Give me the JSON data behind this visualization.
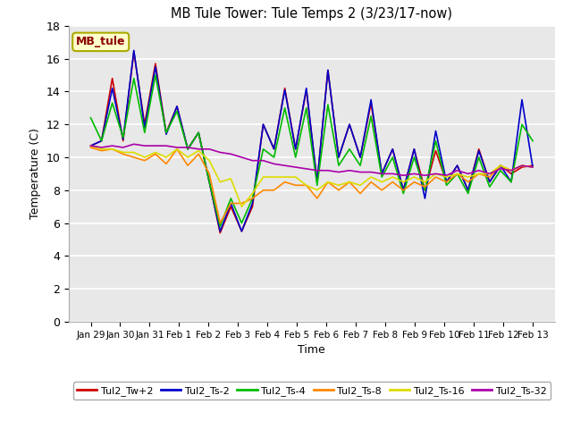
{
  "title": "MB Tule Tower: Tule Temps 2 (3/23/17-now)",
  "xlabel": "Time",
  "ylabel": "Temperature (C)",
  "ylim": [
    0,
    18
  ],
  "yticks": [
    0,
    2,
    4,
    6,
    8,
    10,
    12,
    14,
    16,
    18
  ],
  "annotation_text": "MB_tule",
  "annotation_color": "#8B0000",
  "annotation_bg": "#FFFFCC",
  "annotation_border": "#AAAA00",
  "plot_bg": "#E8E8E8",
  "grid_color": "#FFFFFF",
  "x_labels": [
    "Jan 29",
    "Jan 30",
    "Jan 31",
    "Feb 1",
    "Feb 2",
    "Feb 3",
    "Feb 4",
    "Feb 5",
    "Feb 6",
    "Feb 7",
    "Feb 8",
    "Feb 9",
    "Feb 10",
    "Feb 11",
    "Feb 12",
    "Feb 13"
  ],
  "series": {
    "Tul2_Tw+2": {
      "color": "#CC0000",
      "lw": 1.2,
      "data": [
        10.7,
        11.0,
        14.8,
        11.0,
        16.4,
        12.0,
        15.7,
        11.5,
        13.1,
        10.5,
        11.5,
        8.5,
        5.4,
        7.0,
        5.5,
        7.0,
        12.0,
        10.5,
        14.2,
        10.5,
        14.1,
        8.5,
        15.3,
        10.0,
        12.0,
        10.0,
        13.3,
        9.0,
        10.5,
        8.0,
        10.5,
        8.0,
        10.4,
        8.5,
        9.5,
        8.0,
        10.5,
        8.5,
        9.5,
        9.0,
        9.4,
        9.5
      ]
    },
    "Tul2_Ts-2": {
      "color": "#0000CC",
      "lw": 1.2,
      "data": [
        10.7,
        11.0,
        14.2,
        11.1,
        16.5,
        11.8,
        15.5,
        11.4,
        13.1,
        10.5,
        11.5,
        8.5,
        5.5,
        7.2,
        5.5,
        7.2,
        12.0,
        10.5,
        14.1,
        10.5,
        14.2,
        8.5,
        15.3,
        10.0,
        12.0,
        10.0,
        13.5,
        9.0,
        10.5,
        8.0,
        10.5,
        7.5,
        11.6,
        8.5,
        9.5,
        8.0,
        10.4,
        8.5,
        9.5,
        8.5,
        13.5,
        9.4
      ]
    },
    "Tul2_Ts-4": {
      "color": "#00BB00",
      "lw": 1.2,
      "data": [
        12.4,
        11.0,
        13.3,
        11.2,
        14.8,
        11.5,
        15.0,
        11.5,
        12.8,
        10.5,
        11.5,
        8.5,
        5.8,
        7.5,
        6.0,
        7.5,
        10.5,
        10.0,
        13.0,
        10.0,
        13.0,
        8.3,
        13.2,
        9.5,
        10.5,
        9.5,
        12.5,
        8.8,
        10.0,
        7.8,
        10.0,
        8.0,
        11.0,
        8.3,
        9.0,
        7.8,
        10.0,
        8.2,
        9.2,
        8.5,
        12.0,
        11.0
      ]
    },
    "Tul2_Ts-8": {
      "color": "#FF8800",
      "lw": 1.2,
      "data": [
        10.6,
        10.4,
        10.5,
        10.2,
        10.0,
        9.8,
        10.2,
        9.6,
        10.5,
        9.5,
        10.2,
        9.0,
        6.0,
        7.2,
        7.2,
        7.5,
        8.0,
        8.0,
        8.5,
        8.3,
        8.3,
        7.5,
        8.5,
        8.0,
        8.5,
        7.8,
        8.5,
        8.0,
        8.5,
        8.0,
        8.5,
        8.2,
        8.8,
        8.5,
        9.0,
        8.5,
        9.0,
        8.8,
        9.5,
        9.2,
        9.5,
        9.4
      ]
    },
    "Tul2_Ts-16": {
      "color": "#DDDD00",
      "lw": 1.2,
      "data": [
        10.7,
        10.5,
        10.5,
        10.3,
        10.3,
        10.0,
        10.3,
        10.0,
        10.5,
        10.0,
        10.4,
        9.8,
        8.5,
        8.7,
        7.0,
        7.8,
        8.8,
        8.8,
        8.8,
        8.8,
        8.3,
        8.0,
        8.5,
        8.3,
        8.5,
        8.3,
        8.8,
        8.5,
        8.8,
        8.5,
        8.8,
        8.5,
        9.0,
        8.8,
        9.0,
        8.8,
        9.0,
        9.0,
        9.5,
        9.2,
        9.5,
        9.4
      ]
    },
    "Tul2_Ts-32": {
      "color": "#AA00AA",
      "lw": 1.2,
      "data": [
        10.7,
        10.6,
        10.7,
        10.6,
        10.8,
        10.7,
        10.7,
        10.7,
        10.6,
        10.6,
        10.5,
        10.5,
        10.3,
        10.2,
        10.0,
        9.8,
        9.8,
        9.6,
        9.5,
        9.4,
        9.3,
        9.2,
        9.2,
        9.1,
        9.2,
        9.1,
        9.1,
        9.0,
        9.0,
        8.9,
        9.0,
        8.9,
        9.0,
        8.9,
        9.2,
        9.0,
        9.2,
        9.0,
        9.3,
        9.2,
        9.5,
        9.4
      ]
    }
  }
}
